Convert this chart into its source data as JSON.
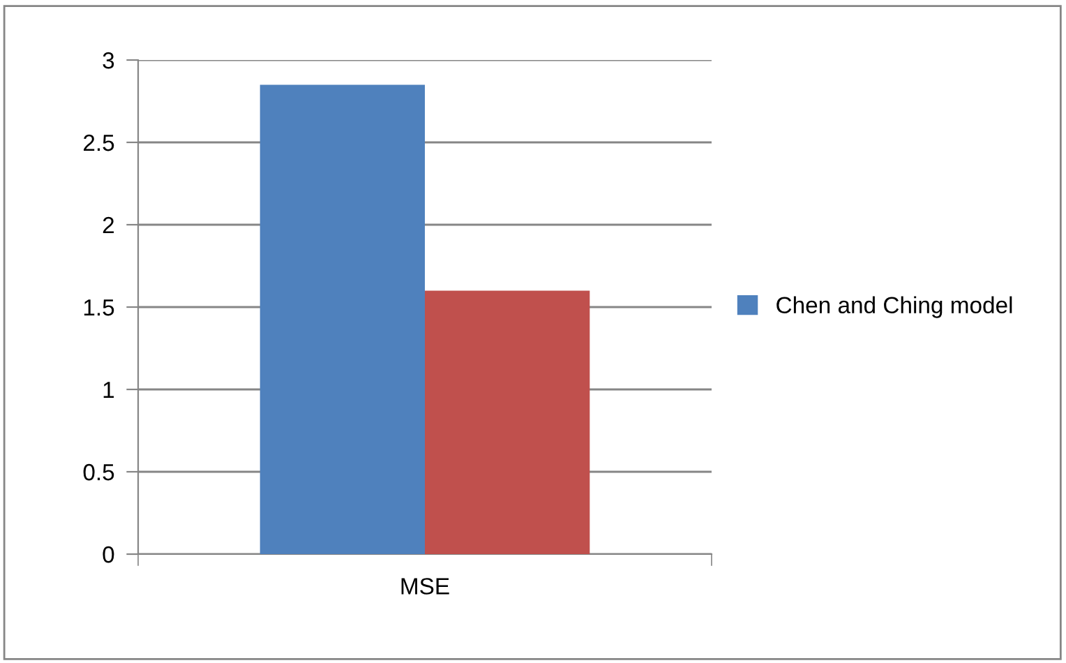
{
  "chart_data": {
    "type": "bar",
    "categories": [
      "MSE"
    ],
    "series": [
      {
        "name": "Chen and Ching model",
        "color": "#4f81bd",
        "values": [
          2.85
        ]
      },
      {
        "color": "#c0504d",
        "values": [
          1.6
        ]
      }
    ],
    "ylim": [
      0,
      3
    ],
    "yticks": [
      0,
      0.5,
      1,
      1.5,
      2,
      2.5,
      3
    ],
    "grid": "y",
    "legend": "right"
  }
}
